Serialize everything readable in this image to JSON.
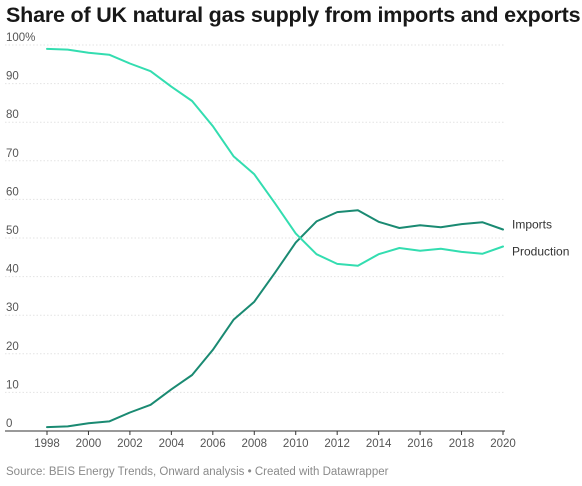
{
  "title": "Share of UK natural gas supply from imports and exports",
  "footer": {
    "source": "Source: BEIS Energy Trends, Onward analysis",
    "separator": " • ",
    "credit": "Created with Datawrapper"
  },
  "chart_data": {
    "type": "line",
    "x": [
      1998,
      1999,
      2000,
      2001,
      2002,
      2003,
      2004,
      2005,
      2006,
      2007,
      2008,
      2009,
      2010,
      2011,
      2012,
      2013,
      2014,
      2015,
      2016,
      2017,
      2018,
      2019,
      2020
    ],
    "series": [
      {
        "name": "Imports",
        "color": "#1a8a72",
        "values": [
          1.0,
          1.2,
          2.0,
          2.5,
          4.8,
          6.8,
          10.8,
          14.5,
          21.0,
          28.8,
          33.5,
          41.0,
          48.8,
          54.3,
          56.7,
          57.2,
          54.2,
          52.6,
          53.3,
          52.8,
          53.6,
          54.1,
          52.2
        ]
      },
      {
        "name": "Production",
        "color": "#33ddb0",
        "values": [
          99.0,
          98.8,
          98.0,
          97.5,
          95.2,
          93.2,
          89.2,
          85.5,
          79.0,
          71.2,
          66.5,
          59.0,
          51.2,
          45.8,
          43.3,
          42.8,
          45.8,
          47.4,
          46.7,
          47.2,
          46.4,
          45.9,
          47.8
        ]
      }
    ],
    "xlim": [
      1998,
      2020
    ],
    "ylim": [
      0,
      100
    ],
    "y_ticks": [
      0,
      10,
      20,
      30,
      40,
      50,
      60,
      70,
      80,
      90,
      100
    ],
    "y_tick_labels": [
      "0",
      "10",
      "20",
      "30",
      "40",
      "50",
      "60",
      "70",
      "80",
      "90",
      "100%"
    ],
    "x_ticks": [
      1998,
      2000,
      2002,
      2004,
      2006,
      2008,
      2010,
      2012,
      2014,
      2016,
      2018,
      2020
    ],
    "x_tick_labels": [
      "1998",
      "2000",
      "2002",
      "2004",
      "2006",
      "2008",
      "2010",
      "2012",
      "2014",
      "2016",
      "2018",
      "2020"
    ],
    "grid": "horizontal",
    "legend": "direct labels at right end of lines"
  }
}
